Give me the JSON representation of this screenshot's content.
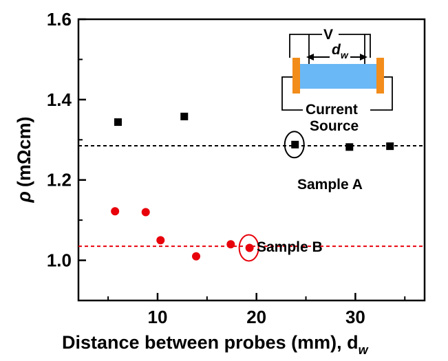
{
  "chart_data": {
    "type": "scatter",
    "xlim": [
      2,
      37
    ],
    "ylim": [
      0.9,
      1.6
    ],
    "x_ticks": [
      10,
      20,
      30
    ],
    "y_ticks": [
      1.0,
      1.2,
      1.4,
      1.6
    ],
    "x_tick_labels": [
      "10",
      "20",
      "30"
    ],
    "y_tick_labels": [
      "1.0",
      "1.2",
      "1.4",
      "1.6"
    ],
    "xlabel": "Distance between probes (mm), d",
    "xlabel_sub": "w",
    "ylabel_symbol": "ρ",
    "ylabel_unit": "(mΩcm)",
    "grid": false,
    "series": [
      {
        "name": "Sample A",
        "marker": "square",
        "color": "#000000",
        "x": [
          6.0,
          12.7,
          23.9,
          29.4,
          33.5
        ],
        "y": [
          1.344,
          1.358,
          1.288,
          1.282,
          1.284
        ],
        "reference_line_y": 1.285,
        "highlighted_index": 2
      },
      {
        "name": "Sample B",
        "marker": "circle",
        "color": "#e8000b",
        "x": [
          5.7,
          8.8,
          10.3,
          13.9,
          17.4,
          19.3
        ],
        "y": [
          1.122,
          1.12,
          1.05,
          1.01,
          1.04,
          1.031
        ],
        "reference_line_y": 1.035,
        "highlighted_index": 5
      }
    ],
    "inset": {
      "voltage_label": "V",
      "distance_label": "d",
      "distance_sub": "w",
      "source_line1": "Current",
      "source_line2": "Source",
      "bar_color": "#6ab8f5",
      "contact_color": "#f28c1b"
    }
  }
}
